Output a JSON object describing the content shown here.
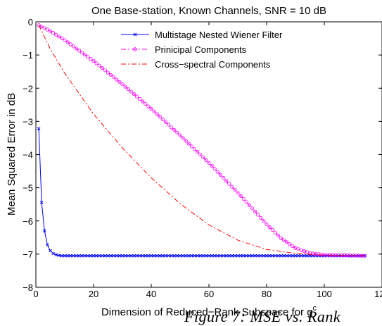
{
  "chart_data": {
    "type": "line",
    "title": "One Base-station, Known Channels, SNR = 10 dB",
    "xlabel": "Dimension of Reduced−Rank Subspace for g",
    "xlabel_superscript": "c",
    "ylabel": "Mean Squared Error in dB",
    "xlim": [
      0,
      120
    ],
    "ylim": [
      -8,
      0
    ],
    "x_ticks": [
      "0",
      "20",
      "40",
      "60",
      "80",
      "100",
      "120"
    ],
    "y_ticks": [
      "0",
      "−1",
      "−2",
      "−3",
      "−4",
      "−5",
      "−6",
      "−7",
      "−8"
    ],
    "grid": false,
    "legend_position": "top-right",
    "x_range_points": [
      1,
      114
    ],
    "series": [
      {
        "name": "Multistage Nested Wiener Filter",
        "color": "#0000ff",
        "line_style": "solid",
        "marker": "x",
        "points": [
          [
            1,
            -3.22
          ],
          [
            2,
            -5.45
          ],
          [
            3,
            -6.3
          ],
          [
            4,
            -6.72
          ],
          [
            5,
            -6.9
          ],
          [
            6,
            -6.98
          ],
          [
            7,
            -7.02
          ],
          [
            8,
            -7.04
          ],
          [
            9,
            -7.05
          ],
          [
            10,
            -7.05
          ],
          [
            114,
            -7.05
          ]
        ]
      },
      {
        "name": "Prinicipal Components",
        "color": "#ff00ff",
        "line_style": "dash-dot",
        "marker": "circle",
        "points": [
          [
            1,
            -0.1
          ],
          [
            5,
            -0.28
          ],
          [
            10,
            -0.55
          ],
          [
            20,
            -1.18
          ],
          [
            30,
            -1.88
          ],
          [
            40,
            -2.62
          ],
          [
            50,
            -3.42
          ],
          [
            60,
            -4.25
          ],
          [
            70,
            -5.15
          ],
          [
            75,
            -5.62
          ],
          [
            80,
            -6.1
          ],
          [
            85,
            -6.52
          ],
          [
            90,
            -6.82
          ],
          [
            95,
            -6.97
          ],
          [
            100,
            -7.02
          ],
          [
            114,
            -7.05
          ]
        ]
      },
      {
        "name": "Cross−spectral Components",
        "color": "#ff0000",
        "line_style": "dash-dot",
        "marker": "none",
        "points": [
          [
            1,
            -0.1
          ],
          [
            5,
            -0.82
          ],
          [
            10,
            -1.55
          ],
          [
            20,
            -2.78
          ],
          [
            30,
            -3.8
          ],
          [
            40,
            -4.7
          ],
          [
            50,
            -5.48
          ],
          [
            60,
            -6.12
          ],
          [
            70,
            -6.58
          ],
          [
            80,
            -6.86
          ],
          [
            90,
            -6.98
          ],
          [
            100,
            -7.03
          ],
          [
            114,
            -7.05
          ]
        ]
      }
    ]
  },
  "footer_cutoff_text": "Figure 7: MSE vs. Rank"
}
